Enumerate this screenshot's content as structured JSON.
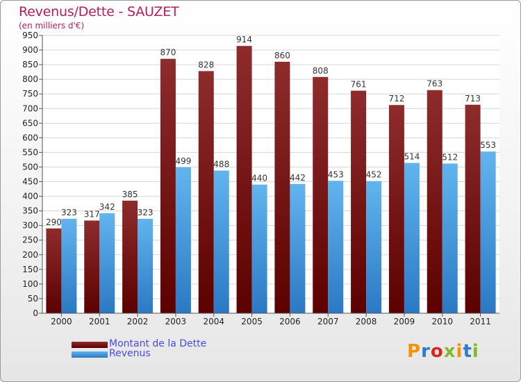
{
  "title": "Revenus/Dette - SAUZET",
  "subtitle": "(en milliers d'€)",
  "colors": {
    "dette_top": "#8e2c2c",
    "dette_bottom": "#5c0000",
    "revenus_top": "#62b4ee",
    "revenus_bottom": "#2b79c4",
    "text": "#b01f5d",
    "legend_text": "#4a4adf"
  },
  "legend": {
    "dette_label": "Montant de la Dette",
    "revenus_label": "Revenus"
  },
  "logo_text": "Proxiti",
  "chart_data": {
    "type": "bar",
    "categories": [
      "2000",
      "2001",
      "2002",
      "2003",
      "2004",
      "2005",
      "2006",
      "2007",
      "2008",
      "2009",
      "2010",
      "2011"
    ],
    "series": [
      {
        "name": "Montant de la Dette",
        "values": [
          290,
          317,
          385,
          870,
          828,
          914,
          860,
          808,
          761,
          712,
          763,
          713
        ]
      },
      {
        "name": "Revenus",
        "values": [
          323,
          342,
          323,
          499,
          488,
          440,
          442,
          453,
          452,
          514,
          512,
          553
        ]
      }
    ],
    "yticks": [
      0,
      50,
      100,
      150,
      200,
      250,
      300,
      350,
      400,
      450,
      500,
      550,
      600,
      650,
      700,
      750,
      800,
      850,
      900,
      950
    ],
    "ylim": [
      0,
      950
    ],
    "grid": true,
    "legend_position": "bottom-left"
  }
}
